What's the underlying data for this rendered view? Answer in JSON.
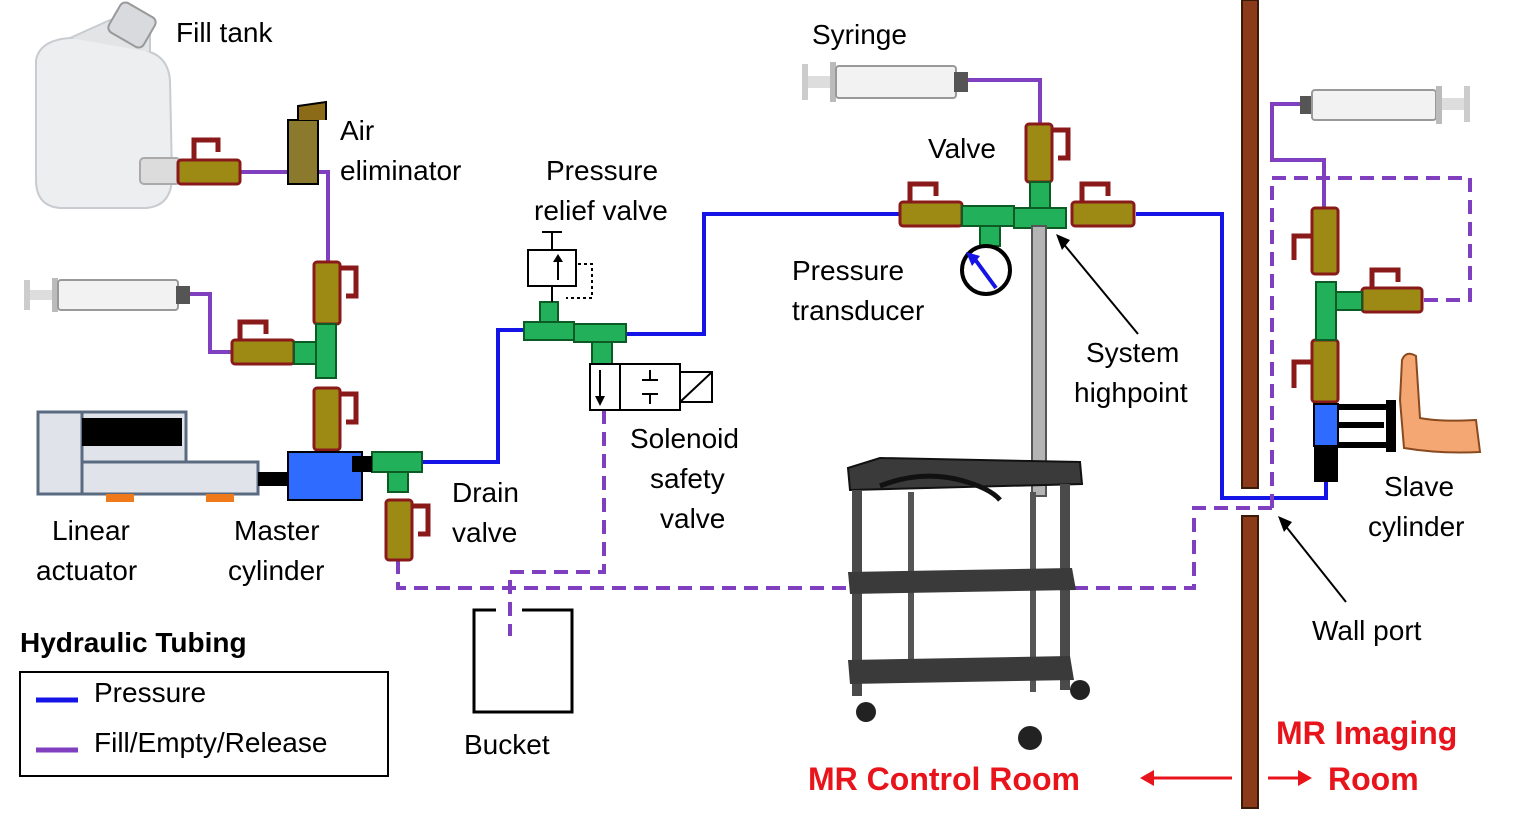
{
  "labels": {
    "fill_tank": "Fill tank",
    "air_eliminator_1": "Air",
    "air_eliminator_2": "eliminator",
    "syringe": "Syringe",
    "valve": "Valve",
    "pressure_relief_1": "Pressure",
    "pressure_relief_2": "relief  valve",
    "pressure_transducer_1": "Pressure",
    "pressure_transducer_2": "transducer",
    "system_highpoint_1": "System",
    "system_highpoint_2": "highpoint",
    "solenoid_1": "Solenoid",
    "solenoid_2": "safety",
    "solenoid_3": "valve",
    "drain_valve_1": "Drain",
    "drain_valve_2": "valve",
    "linear_actuator_1": "Linear",
    "linear_actuator_2": "actuator",
    "master_cylinder_1": "Master",
    "master_cylinder_2": "cylinder",
    "bucket": "Bucket",
    "slave_cylinder_1": "Slave",
    "slave_cylinder_2": "cylinder",
    "wall_port": "Wall port",
    "control_room": "MR Control Room",
    "imaging_room_1": "MR Imaging",
    "imaging_room_2": "Room"
  },
  "legend": {
    "title": "Hydraulic Tubing",
    "items": [
      {
        "label": "Pressure",
        "color": "#1414e6"
      },
      {
        "label": "Fill/Empty/Release",
        "color": "#7f3fbf"
      }
    ]
  },
  "colors": {
    "pressure_line": "#1414e6",
    "fill_line": "#7f3fbf",
    "room_label": "#e8141b",
    "valve_body": "#9c8a14",
    "valve_handle": "#8a1a1a",
    "tee_fitting": "#22b05a",
    "wall": "#8b3a1a",
    "master_cylinder": "#2f6bff"
  }
}
